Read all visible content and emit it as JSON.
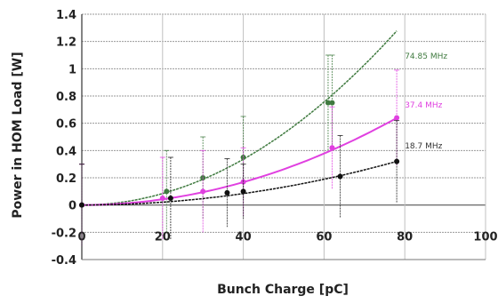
{
  "chart_data": {
    "type": "scatter",
    "title": "",
    "xlabel": "Bunch Charge [pC]",
    "ylabel": "Power in HOM Load [W]",
    "xlim": [
      0,
      100
    ],
    "ylim": [
      -0.4,
      1.4
    ],
    "x_ticks": [
      "0",
      "20",
      "40",
      "60",
      "80",
      "100"
    ],
    "y_ticks": [
      "-0.4",
      "-0.2",
      "0",
      "0.2",
      "0.4",
      "0.6",
      "0.8",
      "1",
      "1.2",
      "1.4"
    ],
    "grid": true,
    "series": [
      {
        "name": "74.85 MHz",
        "color": "#3f7a3f",
        "points": [
          {
            "x": 0,
            "y": 0.0,
            "err": 0.3
          },
          {
            "x": 21,
            "y": 0.1,
            "err": 0.3
          },
          {
            "x": 30,
            "y": 0.2,
            "err": 0.3
          },
          {
            "x": 40,
            "y": 0.35,
            "err": 0.3
          },
          {
            "x": 61,
            "y": 0.75,
            "err": 0.35
          },
          {
            "x": 62,
            "y": 0.75,
            "err": 0.35
          }
        ],
        "fit_coef": 0.00021,
        "fit_xmax": 78
      },
      {
        "name": "37.4 MHz",
        "color": "#e040e0",
        "points": [
          {
            "x": 0,
            "y": 0.0,
            "err": 0.3
          },
          {
            "x": 20,
            "y": 0.05,
            "err": 0.3
          },
          {
            "x": 30,
            "y": 0.1,
            "err": 0.3
          },
          {
            "x": 40,
            "y": 0.17,
            "err": 0.25
          },
          {
            "x": 62,
            "y": 0.42,
            "err": 0.3
          },
          {
            "x": 78,
            "y": 0.64,
            "err": 0.35
          }
        ],
        "fit_coef": 0.000105,
        "fit_xmax": 78
      },
      {
        "name": "18.7 MHz",
        "color": "#111111",
        "points": [
          {
            "x": 0,
            "y": 0.0,
            "err": 0.3
          },
          {
            "x": 22,
            "y": 0.05,
            "err": 0.3
          },
          {
            "x": 36,
            "y": 0.09,
            "err": 0.25
          },
          {
            "x": 40,
            "y": 0.1,
            "err": 0.2
          },
          {
            "x": 64,
            "y": 0.21,
            "err": 0.3
          },
          {
            "x": 78,
            "y": 0.32,
            "err": 0.3
          }
        ],
        "fit_coef": 5.26e-05,
        "fit_xmax": 78
      }
    ],
    "labels": [
      {
        "text": "74.85 MHz",
        "x": 80,
        "y": 1.1,
        "color": "#3f7a3f"
      },
      {
        "text": "37.4 MHz",
        "x": 80,
        "y": 0.74,
        "color": "#e040e0"
      },
      {
        "text": "18.7 MHz",
        "x": 80,
        "y": 0.44,
        "color": "#333333"
      }
    ]
  }
}
